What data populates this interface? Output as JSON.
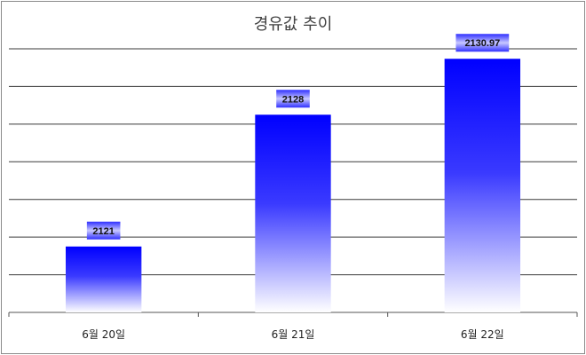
{
  "chart_data": {
    "type": "bar",
    "title": "경유값 추이",
    "xlabel": "",
    "ylabel": "",
    "categories": [
      "6월 20일",
      "6월 21일",
      "6월 22일"
    ],
    "values": [
      2121,
      2128,
      2130.97
    ],
    "value_labels": [
      "2121",
      "2128",
      "2130.97"
    ],
    "ylim": [
      2117.5,
      2131.5
    ],
    "y_tick_labels_shown": false,
    "grid": true,
    "legend": "none",
    "bar_color_top": "#0000ff",
    "bar_color_bottom": "#ffffff",
    "label_box_color": "#2222ee"
  }
}
